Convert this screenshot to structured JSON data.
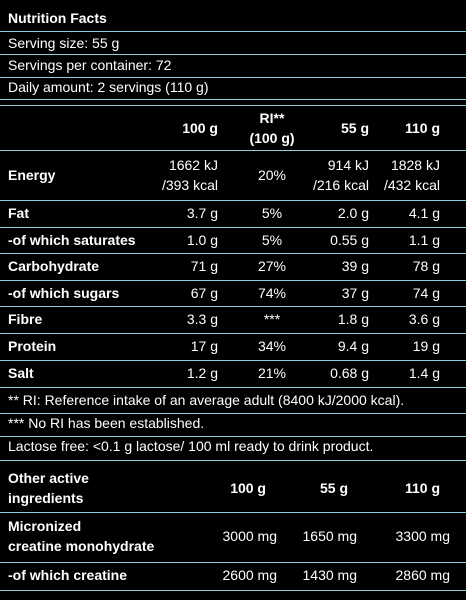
{
  "header": {
    "title": "Nutrition Facts",
    "lines": [
      "Serving size: 55 g",
      "Servings per container: 72",
      "Daily amount: 2 servings (110 g)"
    ]
  },
  "table": {
    "columns": [
      "100 g",
      [
        "RI**",
        "(100 g)"
      ],
      "55 g",
      "110 g"
    ],
    "rows": [
      {
        "label": "Energy",
        "cells": [
          [
            "1662 kJ",
            "/393 kcal"
          ],
          "20%",
          [
            "914 kJ",
            "/216 kcal"
          ],
          [
            "1828 kJ",
            "/432 kcal"
          ]
        ]
      },
      {
        "label": "Fat",
        "cells": [
          "3.7 g",
          "5%",
          "2.0 g",
          "4.1 g"
        ]
      },
      {
        "label": "-of which saturates",
        "cells": [
          "1.0 g",
          "5%",
          "0.55 g",
          "1.1 g"
        ]
      },
      {
        "label": "Carbohydrate",
        "cells": [
          "71 g",
          "27%",
          "39 g",
          "78 g"
        ]
      },
      {
        "label": "-of which sugars",
        "cells": [
          "67 g",
          "74%",
          "37 g",
          "74 g"
        ]
      },
      {
        "label": "Fibre",
        "cells": [
          "3.3 g",
          "***",
          "1.8 g",
          "3.6 g"
        ]
      },
      {
        "label": "Protein",
        "cells": [
          "17 g",
          "34%",
          "9.4 g",
          "19 g"
        ]
      },
      {
        "label": "Salt",
        "cells": [
          "1.2 g",
          "21%",
          "0.68 g",
          "1.4 g"
        ]
      }
    ]
  },
  "notes": [
    "** RI: Reference intake of an average adult (8400 kJ/2000 kcal).",
    "*** No RI has been established.",
    "Lactose free: <0.1 g lactose/ 100 ml ready to drink product."
  ],
  "table2": {
    "columns": [
      [
        "Other active",
        "ingredients"
      ],
      "100 g",
      "55 g",
      "110 g"
    ],
    "rows": [
      {
        "label": [
          "Micronized",
          "creatine monohydrate"
        ],
        "cells": [
          "3000 mg",
          "1650 mg",
          "3300 mg"
        ]
      },
      {
        "label": "-of which creatine",
        "cells": [
          "2600 mg",
          "1430 mg",
          "2860 mg"
        ]
      }
    ]
  }
}
